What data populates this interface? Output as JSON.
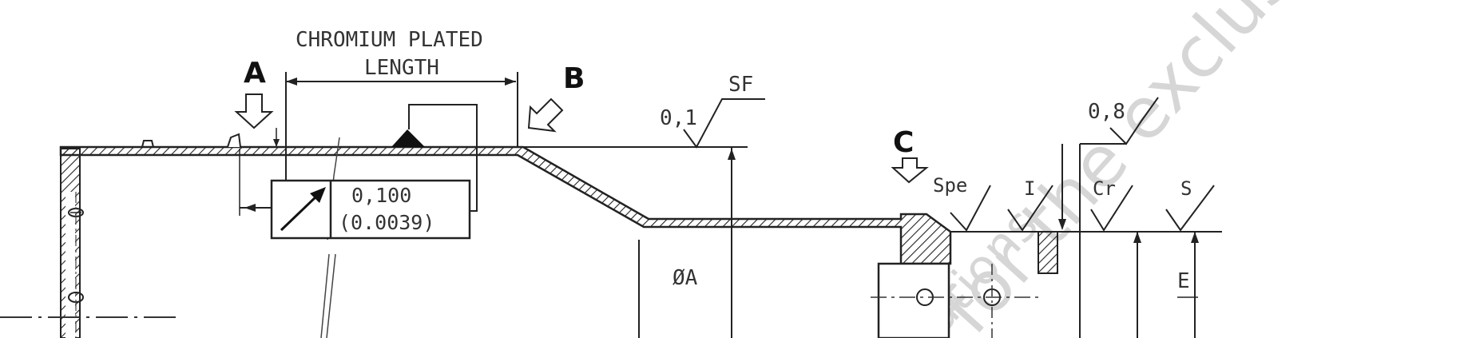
{
  "drawing": {
    "chromium_label_1": "CHROMIUM PLATED",
    "chromium_label_2": "LENGTH",
    "view_a": "A",
    "view_b": "B",
    "view_c": "C",
    "runout_value": "0,100",
    "runout_value_in": "(0.0039)",
    "finish_sf_value": "0,1",
    "finish_sf_label": "SF",
    "finish_08_value": "0,8",
    "finish_spe": "Spe",
    "finish_i": "I",
    "finish_cr": "Cr",
    "finish_s": "S",
    "dim_oa": "ØA",
    "dim_e": "E",
    "watermark": "for the exclusive use",
    "watermark_2": "ations"
  }
}
